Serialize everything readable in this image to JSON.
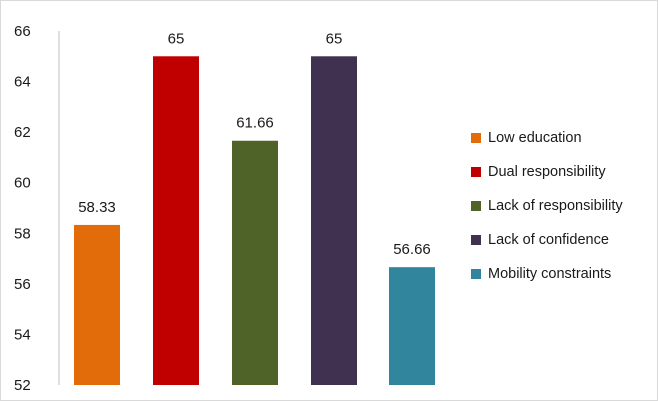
{
  "chart_data": {
    "type": "bar",
    "title": "",
    "xlabel": "",
    "ylabel": "",
    "categories": [
      "Low education",
      "Dual responsibility",
      "Lack of responsibility",
      "Lack of confidence",
      "Mobility constraints"
    ],
    "values": [
      58.33,
      65,
      61.66,
      65,
      56.66
    ],
    "data_labels": [
      "58.33",
      "65",
      "61.66",
      "65",
      "56.66"
    ],
    "colors": [
      "#e36c0a",
      "#c00000",
      "#4f6228",
      "#403151",
      "#31859c"
    ],
    "ylim": [
      52,
      66
    ],
    "yticks": [
      52,
      54,
      56,
      58,
      60,
      62,
      64,
      66
    ],
    "ytick_labels": [
      "52",
      "54",
      "56",
      "58",
      "60",
      "62",
      "64",
      "66"
    ],
    "grid": false,
    "legend_position": "right"
  }
}
